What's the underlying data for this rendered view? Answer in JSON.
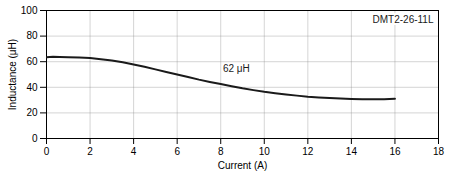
{
  "chart_data": {
    "type": "line",
    "title": "DMT2-26-11L",
    "xlabel": "Current (A)",
    "ylabel": "Inductance (μH)",
    "x": [
      0,
      0.3,
      0.6,
      1.0,
      1.5,
      2.0,
      2.5,
      3.0,
      3.5,
      4.0,
      4.5,
      5.0,
      5.5,
      6.0,
      6.5,
      7.0,
      7.5,
      8.0,
      8.5,
      9.0,
      9.5,
      10.0,
      10.5,
      11.0,
      11.5,
      12.0,
      12.5,
      13.0,
      13.5,
      14.0,
      14.5,
      15.0,
      15.5,
      16.0
    ],
    "values": [
      63.5,
      63.8,
      63.7,
      63.5,
      63.2,
      62.8,
      62.0,
      61.0,
      59.5,
      57.8,
      56.0,
      54.0,
      52.0,
      50.0,
      48.0,
      46.0,
      44.2,
      42.5,
      40.8,
      39.2,
      37.8,
      36.5,
      35.4,
      34.4,
      33.5,
      32.7,
      32.1,
      31.6,
      31.2,
      30.9,
      30.7,
      30.6,
      30.7,
      31.0
    ],
    "color": "#1a1a1a",
    "xlim": [
      0,
      18
    ],
    "ylim": [
      0,
      100
    ],
    "xticks": [
      0,
      2,
      4,
      6,
      8,
      10,
      12,
      14,
      16,
      18
    ],
    "yticks": [
      0,
      20,
      40,
      60,
      80,
      100
    ],
    "grid": true,
    "annotations": [
      {
        "text": "62 μH",
        "x": 8.1,
        "y": 52.0
      }
    ]
  }
}
